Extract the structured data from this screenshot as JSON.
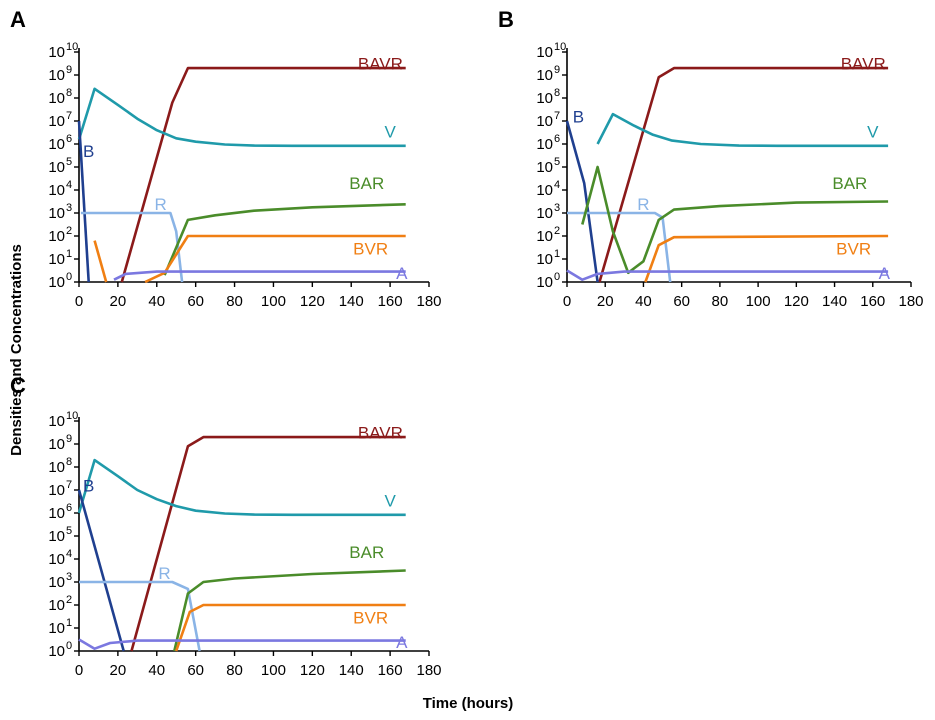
{
  "figure": {
    "ylabel": "Densities and Concentrations",
    "xlabel": "Time (hours)"
  },
  "colors": {
    "BAVR": "#8b1a1a",
    "V": "#1f9aaa",
    "B": "#1f3f8f",
    "R": "#8ab4e6",
    "BAR": "#4a8c2a",
    "BVR": "#f07f13",
    "A": "#7b78e0"
  },
  "chart_data": [
    {
      "panel": "A",
      "type": "line",
      "xlim": [
        0,
        180
      ],
      "ylim_log10": [
        0,
        10
      ],
      "x_ticks": [
        "0",
        "20",
        "40",
        "60",
        "80",
        "100",
        "120",
        "140",
        "160",
        "180"
      ],
      "y_tick_bases": [
        "10",
        "10",
        "10",
        "10",
        "10",
        "10",
        "10",
        "10",
        "10",
        "10",
        "10"
      ],
      "y_tick_exponents": [
        "0",
        "1",
        "2",
        "3",
        "4",
        "5",
        "6",
        "7",
        "8",
        "9",
        "10"
      ],
      "series": [
        {
          "name": "BAVR",
          "label_pos": [
            155,
            9.5
          ],
          "points": [
            [
              22,
              0
            ],
            [
              48,
              7.8
            ],
            [
              56,
              9.3
            ],
            [
              168,
              9.3
            ]
          ]
        },
        {
          "name": "V",
          "label_pos": [
            160,
            6.55
          ],
          "points": [
            [
              0,
              6.2
            ],
            [
              8,
              8.4
            ],
            [
              20,
              7.7
            ],
            [
              30,
              7.1
            ],
            [
              40,
              6.6
            ],
            [
              50,
              6.25
            ],
            [
              60,
              6.1
            ],
            [
              75,
              5.98
            ],
            [
              90,
              5.93
            ],
            [
              110,
              5.92
            ],
            [
              168,
              5.92
            ]
          ]
        },
        {
          "name": "B",
          "label_pos": [
            5,
            5.7
          ],
          "points": [
            [
              0,
              7.0
            ],
            [
              5,
              0
            ]
          ]
        },
        {
          "name": "R",
          "label_pos": [
            42,
            3.4
          ],
          "points": [
            [
              1,
              3.0
            ],
            [
              47,
              3.0
            ],
            [
              50,
              2.2
            ],
            [
              53,
              0
            ]
          ]
        },
        {
          "name": "BAR",
          "label_pos": [
            148,
            4.3
          ],
          "points": [
            [
              44,
              0.3
            ],
            [
              56,
              2.7
            ],
            [
              70,
              2.9
            ],
            [
              90,
              3.1
            ],
            [
              120,
              3.25
            ],
            [
              168,
              3.38
            ]
          ]
        },
        {
          "name": "BVR",
          "label_pos": [
            150,
            1.45
          ],
          "points": [
            [
              8,
              1.8
            ],
            [
              14,
              0
            ],
            [
              null,
              null
            ],
            [
              34,
              0
            ],
            [
              44,
              0.4
            ],
            [
              56,
              2.0
            ],
            [
              168,
              2.0
            ]
          ]
        },
        {
          "name": "A",
          "label_pos": [
            166,
            0.4
          ],
          "points": [
            [
              18,
              0.1
            ],
            [
              24,
              0.35
            ],
            [
              40,
              0.45
            ],
            [
              80,
              0.45
            ],
            [
              168,
              0.45
            ]
          ]
        }
      ]
    },
    {
      "panel": "B",
      "type": "line",
      "xlim": [
        0,
        180
      ],
      "ylim_log10": [
        0,
        10
      ],
      "x_ticks": [
        "0",
        "20",
        "40",
        "60",
        "80",
        "100",
        "120",
        "140",
        "160",
        "180"
      ],
      "y_tick_bases": [
        "10",
        "10",
        "10",
        "10",
        "10",
        "10",
        "10",
        "10",
        "10",
        "10",
        "10"
      ],
      "y_tick_exponents": [
        "0",
        "1",
        "2",
        "3",
        "4",
        "5",
        "6",
        "7",
        "8",
        "9",
        "10"
      ],
      "series": [
        {
          "name": "BAVR",
          "label_pos": [
            155,
            9.5
          ],
          "points": [
            [
              17,
              0
            ],
            [
              48,
              8.9
            ],
            [
              56,
              9.3
            ],
            [
              168,
              9.3
            ]
          ]
        },
        {
          "name": "V",
          "label_pos": [
            160,
            6.55
          ],
          "points": [
            [
              16,
              6.0
            ],
            [
              24,
              7.3
            ],
            [
              35,
              6.8
            ],
            [
              45,
              6.4
            ],
            [
              55,
              6.15
            ],
            [
              70,
              6.0
            ],
            [
              90,
              5.93
            ],
            [
              110,
              5.92
            ],
            [
              168,
              5.92
            ]
          ]
        },
        {
          "name": "B",
          "label_pos": [
            6,
            7.2
          ],
          "points": [
            [
              0,
              7.0
            ],
            [
              9,
              4.3
            ],
            [
              16,
              0
            ]
          ]
        },
        {
          "name": "R",
          "label_pos": [
            40,
            3.4
          ],
          "points": [
            [
              0,
              3.0
            ],
            [
              46,
              3.0
            ],
            [
              50,
              2.8
            ],
            [
              54,
              0
            ]
          ]
        },
        {
          "name": "BAR",
          "label_pos": [
            148,
            4.3
          ],
          "points": [
            [
              8,
              2.5
            ],
            [
              16,
              5.0
            ],
            [
              24,
              2.2
            ],
            [
              32,
              0.4
            ],
            [
              40,
              0.9
            ],
            [
              48,
              2.7
            ],
            [
              56,
              3.15
            ],
            [
              80,
              3.3
            ],
            [
              120,
              3.45
            ],
            [
              168,
              3.5
            ]
          ]
        },
        {
          "name": "BVR",
          "label_pos": [
            150,
            1.45
          ],
          "points": [
            [
              41,
              0
            ],
            [
              48,
              1.6
            ],
            [
              56,
              1.95
            ],
            [
              168,
              2.0
            ]
          ]
        },
        {
          "name": "A",
          "label_pos": [
            166,
            0.4
          ],
          "points": [
            [
              0,
              0.5
            ],
            [
              8,
              0.1
            ],
            [
              16,
              0.35
            ],
            [
              30,
              0.45
            ],
            [
              168,
              0.45
            ]
          ]
        }
      ]
    },
    {
      "panel": "C",
      "type": "line",
      "xlim": [
        0,
        180
      ],
      "ylim_log10": [
        0,
        10
      ],
      "x_ticks": [
        "0",
        "20",
        "40",
        "60",
        "80",
        "100",
        "120",
        "140",
        "160",
        "180"
      ],
      "y_tick_bases": [
        "10",
        "10",
        "10",
        "10",
        "10",
        "10",
        "10",
        "10",
        "10",
        "10",
        "10"
      ],
      "y_tick_exponents": [
        "0",
        "1",
        "2",
        "3",
        "4",
        "5",
        "6",
        "7",
        "8",
        "9",
        "10"
      ],
      "series": [
        {
          "name": "BAVR",
          "label_pos": [
            155,
            9.5
          ],
          "points": [
            [
              27,
              0
            ],
            [
              56,
              8.9
            ],
            [
              64,
              9.3
            ],
            [
              168,
              9.3
            ]
          ]
        },
        {
          "name": "V",
          "label_pos": [
            160,
            6.55
          ],
          "points": [
            [
              0,
              6.0
            ],
            [
              8,
              8.3
            ],
            [
              20,
              7.6
            ],
            [
              30,
              7.0
            ],
            [
              40,
              6.6
            ],
            [
              50,
              6.3
            ],
            [
              60,
              6.1
            ],
            [
              75,
              5.98
            ],
            [
              90,
              5.93
            ],
            [
              110,
              5.92
            ],
            [
              168,
              5.92
            ]
          ]
        },
        {
          "name": "B",
          "label_pos": [
            5,
            7.2
          ],
          "points": [
            [
              0,
              7.0
            ],
            [
              23,
              0
            ]
          ]
        },
        {
          "name": "R",
          "label_pos": [
            44,
            3.4
          ],
          "points": [
            [
              0,
              3.0
            ],
            [
              48,
              3.0
            ],
            [
              56,
              2.7
            ],
            [
              62,
              0
            ]
          ]
        },
        {
          "name": "BAR",
          "label_pos": [
            148,
            4.3
          ],
          "points": [
            [
              49,
              0
            ],
            [
              56,
              2.5
            ],
            [
              64,
              3.0
            ],
            [
              80,
              3.15
            ],
            [
              120,
              3.35
            ],
            [
              168,
              3.5
            ]
          ]
        },
        {
          "name": "BVR",
          "label_pos": [
            150,
            1.45
          ],
          "points": [
            [
              50,
              0
            ],
            [
              57,
              1.7
            ],
            [
              64,
              2.0
            ],
            [
              168,
              2.0
            ]
          ]
        },
        {
          "name": "A",
          "label_pos": [
            166,
            0.4
          ],
          "points": [
            [
              0,
              0.5
            ],
            [
              8,
              0.1
            ],
            [
              16,
              0.35
            ],
            [
              30,
              0.45
            ],
            [
              168,
              0.45
            ]
          ]
        }
      ]
    }
  ]
}
